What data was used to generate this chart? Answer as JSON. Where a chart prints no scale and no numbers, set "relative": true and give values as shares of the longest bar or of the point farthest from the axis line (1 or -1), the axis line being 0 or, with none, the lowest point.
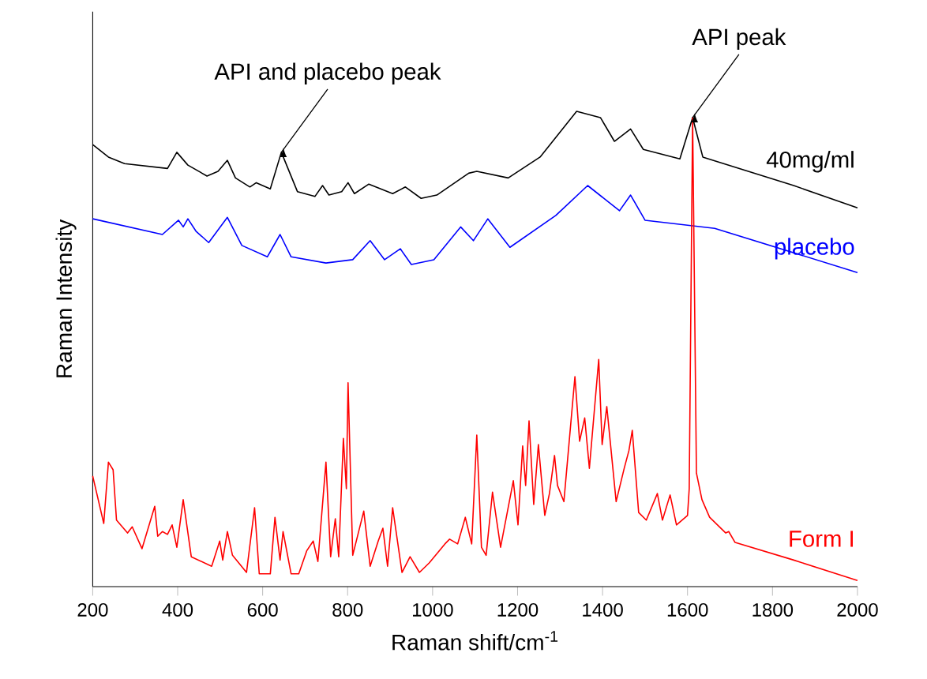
{
  "chart_data": {
    "type": "line",
    "relative": true,
    "xlabel": "Raman shift/cm$^{-1}$",
    "ylabel": "Raman Intensity",
    "xlim": [
      200,
      2000
    ],
    "xticks": [
      200,
      400,
      600,
      800,
      1000,
      1200,
      1400,
      1600,
      1800,
      2000
    ],
    "grid": false,
    "marker": "none",
    "line_style": "solid",
    "series": [
      {
        "name": "40mg/ml",
        "color": "#000000",
        "x": [
          200,
          237,
          275,
          376,
          398,
          424,
          469,
          495,
          517,
          536,
          570,
          585,
          618,
          644,
          682,
          723,
          741,
          756,
          786,
          801,
          816,
          850,
          906,
          936,
          973,
          1010,
          1085,
          1104,
          1178,
          1253,
          1339,
          1395,
          1428,
          1466,
          1496,
          1582,
          1612,
          1636,
          1850,
          2000
        ],
        "values": [
          0.93,
          0.904,
          0.89,
          0.88,
          0.914,
          0.887,
          0.864,
          0.874,
          0.897,
          0.86,
          0.841,
          0.85,
          0.837,
          0.914,
          0.831,
          0.821,
          0.844,
          0.824,
          0.831,
          0.85,
          0.827,
          0.847,
          0.827,
          0.841,
          0.817,
          0.824,
          0.87,
          0.874,
          0.86,
          0.904,
          1.0,
          0.987,
          0.937,
          0.963,
          0.92,
          0.9,
          0.987,
          0.904,
          0.844,
          0.797
        ]
      },
      {
        "name": "placebo",
        "color": "#0000ff",
        "x": [
          200,
          364,
          402,
          413,
          424,
          443,
          473,
          517,
          551,
          611,
          641,
          667,
          749,
          812,
          853,
          887,
          924,
          950,
          1003,
          1066,
          1096,
          1130,
          1182,
          1290,
          1365,
          1440,
          1466,
          1500,
          1664,
          2000
        ],
        "values": [
          0.774,
          0.741,
          0.771,
          0.757,
          0.774,
          0.748,
          0.724,
          0.777,
          0.718,
          0.694,
          0.741,
          0.694,
          0.681,
          0.688,
          0.728,
          0.688,
          0.711,
          0.678,
          0.688,
          0.757,
          0.728,
          0.774,
          0.714,
          0.781,
          0.844,
          0.791,
          0.824,
          0.771,
          0.754,
          0.661
        ]
      },
      {
        "name": "Form I",
        "color": "#ff0000",
        "x": [
          200,
          226,
          237,
          248,
          256,
          282,
          293,
          316,
          346,
          353,
          364,
          376,
          387,
          398,
          413,
          432,
          480,
          499,
          506,
          517,
          529,
          562,
          581,
          592,
          618,
          629,
          641,
          648,
          667,
          685,
          704,
          719,
          730,
          749,
          760,
          771,
          779,
          790,
          797,
          801,
          812,
          838,
          853,
          872,
          883,
          894,
          906,
          928,
          947,
          969,
          992,
          1029,
          1040,
          1059,
          1077,
          1092,
          1104,
          1115,
          1126,
          1141,
          1160,
          1190,
          1201,
          1212,
          1219,
          1227,
          1238,
          1249,
          1264,
          1275,
          1287,
          1294,
          1309,
          1335,
          1346,
          1358,
          1369,
          1391,
          1399,
          1410,
          1432,
          1451,
          1462,
          1470,
          1485,
          1503,
          1529,
          1541,
          1559,
          1574,
          1600,
          1604,
          1612,
          1621,
          1634,
          1652,
          1690,
          1697,
          1712,
          1850,
          2000
        ],
        "values": [
          0.233,
          0.133,
          0.262,
          0.246,
          0.14,
          0.113,
          0.126,
          0.08,
          0.169,
          0.106,
          0.116,
          0.11,
          0.13,
          0.083,
          0.183,
          0.063,
          0.043,
          0.096,
          0.056,
          0.116,
          0.066,
          0.03,
          0.166,
          0.027,
          0.027,
          0.146,
          0.056,
          0.116,
          0.027,
          0.027,
          0.076,
          0.096,
          0.053,
          0.262,
          0.063,
          0.143,
          0.063,
          0.312,
          0.206,
          0.429,
          0.066,
          0.159,
          0.043,
          0.096,
          0.123,
          0.043,
          0.166,
          0.03,
          0.063,
          0.03,
          0.05,
          0.09,
          0.1,
          0.09,
          0.146,
          0.09,
          0.319,
          0.083,
          0.066,
          0.199,
          0.083,
          0.223,
          0.13,
          0.296,
          0.213,
          0.349,
          0.173,
          0.299,
          0.15,
          0.196,
          0.276,
          0.213,
          0.179,
          0.442,
          0.306,
          0.355,
          0.249,
          0.478,
          0.299,
          0.379,
          0.179,
          0.249,
          0.286,
          0.329,
          0.156,
          0.14,
          0.196,
          0.14,
          0.193,
          0.13,
          0.15,
          0.206,
          0.987,
          0.239,
          0.183,
          0.146,
          0.113,
          0.116,
          0.093,
          0.056,
          0.013
        ]
      }
    ],
    "annotations": [
      {
        "text": "API and placebo peak",
        "x": 644,
        "y": 0.914
      },
      {
        "text": "API peak",
        "x": 1612,
        "y": 0.987
      }
    ]
  }
}
